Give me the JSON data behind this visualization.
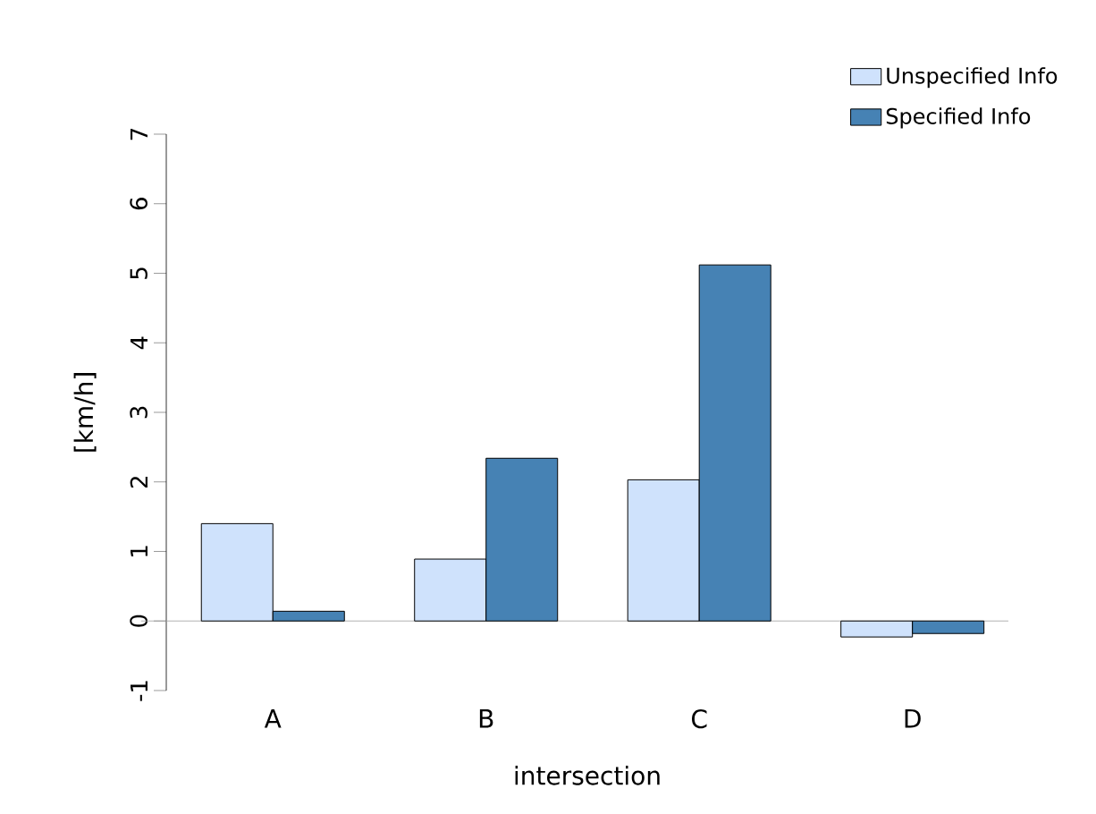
{
  "chart_data": {
    "type": "bar",
    "xlabel": "intersection",
    "ylabel": "[km/h]",
    "categories": [
      "A",
      "B",
      "C",
      "D"
    ],
    "series": [
      {
        "name": "Unspecified Info",
        "color": "#cfe2fc",
        "values": [
          1.4,
          0.89,
          2.03,
          -0.23
        ]
      },
      {
        "name": "Specified Info",
        "color": "#4682b4",
        "values": [
          0.14,
          2.34,
          5.12,
          -0.18
        ]
      }
    ],
    "ylim": [
      -1,
      7
    ],
    "yticks": [
      -1,
      0,
      1,
      2,
      3,
      4,
      5,
      6,
      7
    ],
    "ref_lines": [
      {
        "axis": "y",
        "value": 0,
        "color": "#a0a0a0"
      }
    ],
    "legend": "top right"
  }
}
